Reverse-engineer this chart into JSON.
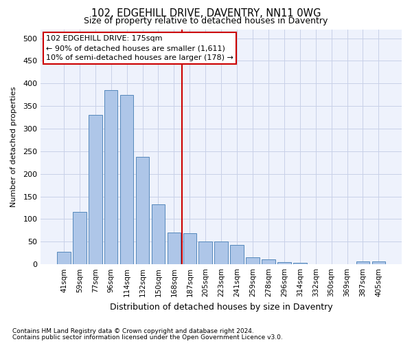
{
  "title": "102, EDGEHILL DRIVE, DAVENTRY, NN11 0WG",
  "subtitle": "Size of property relative to detached houses in Daventry",
  "xlabel": "Distribution of detached houses by size in Daventry",
  "ylabel": "Number of detached properties",
  "bar_labels": [
    "41sqm",
    "59sqm",
    "77sqm",
    "96sqm",
    "114sqm",
    "132sqm",
    "150sqm",
    "168sqm",
    "187sqm",
    "205sqm",
    "223sqm",
    "241sqm",
    "259sqm",
    "278sqm",
    "296sqm",
    "314sqm",
    "332sqm",
    "350sqm",
    "369sqm",
    "387sqm",
    "405sqm"
  ],
  "bar_values": [
    27,
    116,
    330,
    385,
    375,
    237,
    133,
    70,
    68,
    50,
    50,
    43,
    16,
    11,
    5,
    3,
    0,
    0,
    0,
    7,
    6
  ],
  "bar_color": "#aec6e8",
  "bar_edge_color": "#5588bb",
  "property_label": "102 EDGEHILL DRIVE: 175sqm",
  "annotation_line1": "← 90% of detached houses are smaller (1,611)",
  "annotation_line2": "10% of semi-detached houses are larger (178) →",
  "annotation_box_color": "#cc0000",
  "ylim": [
    0,
    520
  ],
  "yticks": [
    0,
    50,
    100,
    150,
    200,
    250,
    300,
    350,
    400,
    450,
    500
  ],
  "footnote1": "Contains HM Land Registry data © Crown copyright and database right 2024.",
  "footnote2": "Contains public sector information licensed under the Open Government Licence v3.0.",
  "bg_color": "#eef2fc",
  "grid_color": "#c8d0e8"
}
